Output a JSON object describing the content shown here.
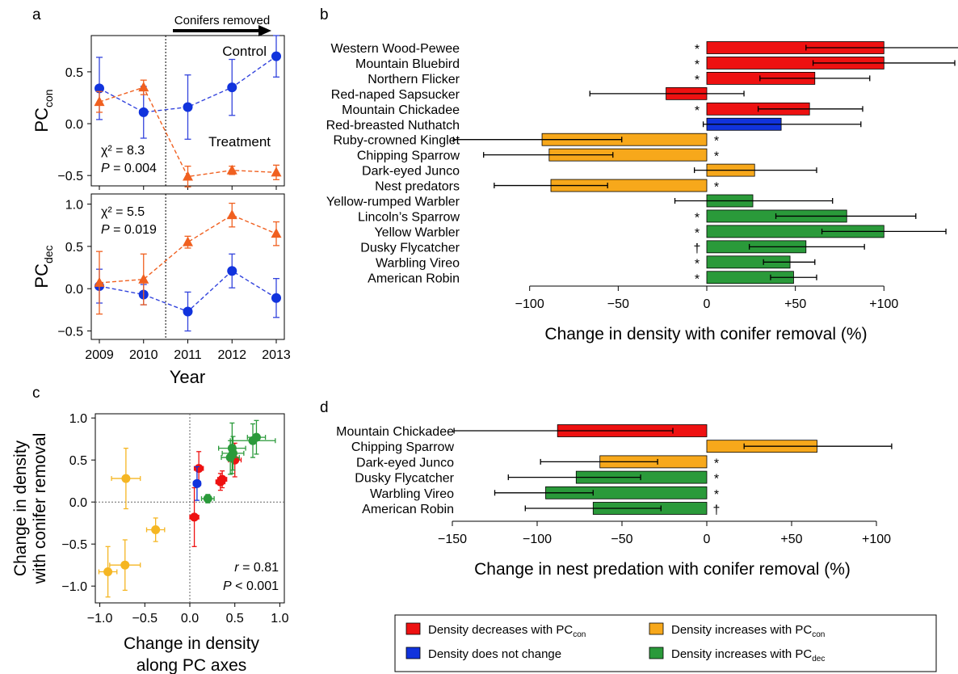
{
  "colors": {
    "red": "#ee1111",
    "blue": "#1133dd",
    "orange": "#f7a81b",
    "green": "#2a9a3a",
    "line_red": "#f06020",
    "line_blue": "#3344dd",
    "scatter_orange": "#f5b623"
  },
  "panel_labels": {
    "a": "a",
    "b": "b",
    "c": "c",
    "d": "d"
  },
  "chart_data": [
    {
      "id": "a_top",
      "type": "line",
      "panel": "a",
      "annotation_arrow": "Conifers removed",
      "x": [
        2009,
        2010,
        2011,
        2012,
        2013
      ],
      "ylim": [
        -0.6,
        0.85
      ],
      "yticks": [
        "0.5",
        "0.0",
        "−0.5"
      ],
      "ytick_values": [
        0.5,
        0,
        -0.5
      ],
      "ylabel_main": "PC",
      "ylabel_sub": "con",
      "stat_1": "χ² = 8.3",
      "stat_2_italic": "P",
      "stat_2_rest": " = 0.004",
      "series": [
        {
          "name": "Control",
          "color": "blue",
          "marker": "circle",
          "values": [
            0.34,
            0.11,
            0.16,
            0.35,
            0.65
          ],
          "err": [
            0.3,
            0.25,
            0.31,
            0.27,
            0.2
          ]
        },
        {
          "name": "Treatment",
          "color": "orange",
          "marker": "triangle",
          "values": [
            0.21,
            0.35,
            -0.51,
            -0.45,
            -0.47
          ],
          "err": [
            0.1,
            0.07,
            0.1,
            0.04,
            0.07
          ]
        }
      ]
    },
    {
      "id": "a_bottom",
      "type": "line",
      "panel": "a",
      "x": [
        2009,
        2010,
        2011,
        2012,
        2013
      ],
      "xticks": [
        "2009",
        "2010",
        "2011",
        "2012",
        "2013"
      ],
      "xlabel": "Year",
      "ylim": [
        -0.6,
        1.12
      ],
      "yticks": [
        "1.0",
        "0.5",
        "0.0",
        "−0.5"
      ],
      "ytick_values": [
        1,
        0.5,
        0,
        -0.5
      ],
      "ylabel_main": "PC",
      "ylabel_sub": "dec",
      "stat_1": "χ² = 5.5",
      "stat_2_italic": "P",
      "stat_2_rest": " = 0.019",
      "series": [
        {
          "color": "blue",
          "marker": "circle",
          "values": [
            0.03,
            -0.07,
            -0.27,
            0.21,
            -0.11
          ],
          "err": [
            0.2,
            0.12,
            0.23,
            0.2,
            0.23
          ]
        },
        {
          "color": "orange",
          "marker": "triangle",
          "values": [
            0.07,
            0.11,
            0.55,
            0.87,
            0.65
          ],
          "err": [
            0.37,
            0.3,
            0.07,
            0.14,
            0.14
          ]
        }
      ]
    },
    {
      "id": "b",
      "type": "bar",
      "panel": "b",
      "orientation": "horizontal",
      "xlabel": "Change in density with conifer removal (%)",
      "xlim": [
        -100,
        100
      ],
      "xticks": [
        "−100",
        "−50",
        "0",
        "+50",
        "+100"
      ],
      "xtick_values": [
        -100,
        -50,
        0,
        50,
        100
      ],
      "bars": [
        {
          "label": "Western Wood-Pewee",
          "value": 100,
          "lo": 56,
          "hi": 150,
          "color": "red",
          "mark": "*"
        },
        {
          "label": "Mountain Bluebird",
          "value": 100,
          "lo": 60,
          "hi": 140,
          "color": "red",
          "mark": "*"
        },
        {
          "label": "Northern Flicker",
          "value": 61,
          "lo": 30,
          "hi": 92,
          "color": "red",
          "mark": "*"
        },
        {
          "label": "Red-naped Sapsucker",
          "value": -23,
          "lo": -66,
          "hi": 21,
          "color": "red",
          "mark": ""
        },
        {
          "label": "Mountain Chickadee",
          "value": 58,
          "lo": 29,
          "hi": 88,
          "color": "red",
          "mark": "*"
        },
        {
          "label": "Red-breasted Nuthatch",
          "value": 42,
          "lo": -2,
          "hi": 87,
          "color": "blue",
          "mark": ""
        },
        {
          "label": "Ruby-crowned Kinglet",
          "value": -93,
          "lo": -143,
          "hi": -48,
          "color": "orange",
          "mark": "*"
        },
        {
          "label": "Chipping Sparrow",
          "value": -89,
          "lo": -126,
          "hi": -53,
          "color": "orange",
          "mark": "*"
        },
        {
          "label": "Dark-eyed Junco",
          "value": 27,
          "lo": -7,
          "hi": 62,
          "color": "orange",
          "mark": ""
        },
        {
          "label": "Nest predators",
          "value": -88,
          "lo": -120,
          "hi": -56,
          "color": "orange",
          "mark": "*"
        },
        {
          "label": "Yellow-rumped Warbler",
          "value": 26,
          "lo": -18,
          "hi": 71,
          "color": "green",
          "mark": ""
        },
        {
          "label": "Lincoln’s Sparrow",
          "value": 79,
          "lo": 39,
          "hi": 118,
          "color": "green",
          "mark": "*"
        },
        {
          "label": "Yellow Warbler",
          "value": 100,
          "lo": 65,
          "hi": 135,
          "color": "green",
          "mark": "*"
        },
        {
          "label": "Dusky Flycatcher",
          "value": 56,
          "lo": 24,
          "hi": 89,
          "color": "green",
          "mark": "†"
        },
        {
          "label": "Warbling Vireo",
          "value": 47,
          "lo": 32,
          "hi": 61,
          "color": "green",
          "mark": "*"
        },
        {
          "label": "American Robin",
          "value": 49,
          "lo": 36,
          "hi": 62,
          "color": "green",
          "mark": "*"
        }
      ]
    },
    {
      "id": "c",
      "type": "scatter",
      "panel": "c",
      "xlabel_1": "Change in density",
      "xlabel_2": "along PC axes",
      "ylabel_1": "Change in density",
      "ylabel_2": "with conifer removal",
      "xlim": [
        -1.05,
        1.05
      ],
      "ylim": [
        -1.2,
        1.05
      ],
      "xticks": [
        "−1.0",
        "−0.5",
        "0.0",
        "0.5",
        "1.0"
      ],
      "xtick_values": [
        -1,
        -0.5,
        0,
        0.5,
        1
      ],
      "yticks": [
        "1.0",
        "0.5",
        "0.0",
        "−0.5",
        "−1.0"
      ],
      "ytick_values": [
        1,
        0.5,
        0,
        -0.5,
        -1
      ],
      "stat_1_italic": "r",
      "stat_1_rest": " = 0.81",
      "stat_2_italic": "P",
      "stat_2_rest": " < 0.001",
      "points": [
        {
          "x": -0.71,
          "y": 0.28,
          "ex": 0.16,
          "ey": 0.36,
          "color": "orange"
        },
        {
          "x": -0.38,
          "y": -0.33,
          "ex": 0.1,
          "ey": 0.14,
          "color": "orange"
        },
        {
          "x": -0.91,
          "y": -0.83,
          "ex": 0.1,
          "ey": 0.3,
          "color": "orange"
        },
        {
          "x": -0.72,
          "y": -0.75,
          "ex": 0.17,
          "ey": 0.3,
          "color": "orange"
        },
        {
          "x": 0.1,
          "y": 0.4,
          "ex": 0.05,
          "ey": 0.2,
          "color": "red"
        },
        {
          "x": 0.36,
          "y": 0.27,
          "ex": 0.05,
          "ey": 0.1,
          "color": "red"
        },
        {
          "x": 0.34,
          "y": 0.24,
          "ex": 0.05,
          "ey": 0.1,
          "color": "red"
        },
        {
          "x": 0.5,
          "y": 0.5,
          "ex": 0.07,
          "ey": 0.2,
          "color": "red"
        },
        {
          "x": 0.05,
          "y": -0.18,
          "ex": 0.05,
          "ey": 0.35,
          "color": "red"
        },
        {
          "x": 0.08,
          "y": 0.22,
          "ex": 0.04,
          "ey": 0.2,
          "color": "blue"
        },
        {
          "x": 0.2,
          "y": 0.04,
          "ex": 0.07,
          "ey": 0.05,
          "color": "green"
        },
        {
          "x": 0.47,
          "y": 0.64,
          "ex": 0.15,
          "ey": 0.3,
          "color": "green"
        },
        {
          "x": 0.48,
          "y": 0.58,
          "ex": 0.12,
          "ey": 0.2,
          "color": "green"
        },
        {
          "x": 0.45,
          "y": 0.53,
          "ex": 0.1,
          "ey": 0.2,
          "color": "green"
        },
        {
          "x": 0.7,
          "y": 0.73,
          "ex": 0.25,
          "ey": 0.2,
          "color": "green"
        },
        {
          "x": 0.74,
          "y": 0.77,
          "ex": 0.1,
          "ey": 0.2,
          "color": "green"
        }
      ]
    },
    {
      "id": "d",
      "type": "bar",
      "panel": "d",
      "orientation": "horizontal",
      "xlabel": "Change in nest predation with conifer removal (%)",
      "xlim": [
        -150,
        100
      ],
      "xticks": [
        "−150",
        "−100",
        "−50",
        "0",
        "+50",
        "+100"
      ],
      "xtick_values": [
        -150,
        -100,
        -50,
        0,
        50,
        100
      ],
      "bars": [
        {
          "label": "Mountain Chickadee",
          "value": -88,
          "lo": -149,
          "hi": -20,
          "color": "red",
          "mark": ""
        },
        {
          "label": "Chipping Sparrow",
          "value": 65,
          "lo": 22,
          "hi": 109,
          "color": "orange",
          "mark": ""
        },
        {
          "label": "Dark-eyed Junco",
          "value": -63,
          "lo": -98,
          "hi": -29,
          "color": "orange",
          "mark": "*"
        },
        {
          "label": "Dusky Flycatcher",
          "value": -77,
          "lo": -117,
          "hi": -39,
          "color": "green",
          "mark": "*"
        },
        {
          "label": "Warbling Vireo",
          "value": -95,
          "lo": -125,
          "hi": -67,
          "color": "green",
          "mark": "*"
        },
        {
          "label": "American Robin",
          "value": -67,
          "lo": -107,
          "hi": -27,
          "color": "green",
          "mark": "†"
        }
      ]
    }
  ],
  "legend": [
    {
      "color": "red",
      "text": "Density decreases with PC",
      "sub": "con"
    },
    {
      "color": "orange",
      "text": "Density increases with PC",
      "sub": "con"
    },
    {
      "color": "blue",
      "text": "Density does not change",
      "sub": ""
    },
    {
      "color": "green",
      "text": "Density increases with PC",
      "sub": "dec"
    }
  ]
}
